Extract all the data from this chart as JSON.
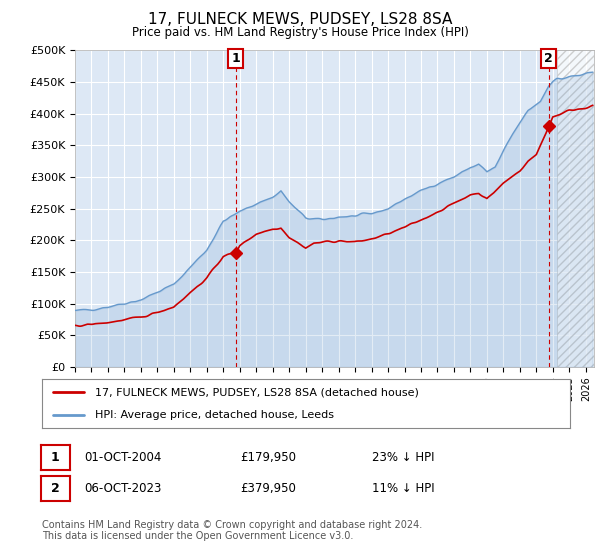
{
  "title": "17, FULNECK MEWS, PUDSEY, LS28 8SA",
  "subtitle": "Price paid vs. HM Land Registry's House Price Index (HPI)",
  "ylim": [
    0,
    500000
  ],
  "yticks": [
    0,
    50000,
    100000,
    150000,
    200000,
    250000,
    300000,
    350000,
    400000,
    450000,
    500000
  ],
  "ytick_labels": [
    "£0",
    "£50K",
    "£100K",
    "£150K",
    "£200K",
    "£250K",
    "£300K",
    "£350K",
    "£400K",
    "£450K",
    "£500K"
  ],
  "hpi_color": "#6699cc",
  "price_color": "#cc0000",
  "plot_bg": "#dde8f5",
  "vline_color": "#cc0000",
  "sale1_date": "01-OCT-2004",
  "sale1_price": 179950,
  "sale1_time": 2004.75,
  "sale1_label": "23% ↓ HPI",
  "sale2_date": "06-OCT-2023",
  "sale2_price": 379950,
  "sale2_time": 2023.75,
  "sale2_label": "11% ↓ HPI",
  "legend_line1": "17, FULNECK MEWS, PUDSEY, LS28 8SA (detached house)",
  "legend_line2": "HPI: Average price, detached house, Leeds",
  "footnote": "Contains HM Land Registry data © Crown copyright and database right 2024.\nThis data is licensed under the Open Government Licence v3.0.",
  "hatch_start": 2024.25,
  "xlim_start": 1995.0,
  "xlim_end": 2026.5
}
